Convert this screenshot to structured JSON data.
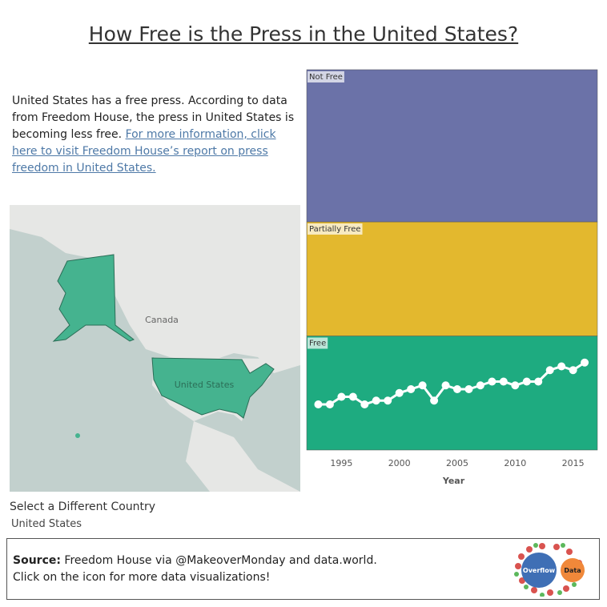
{
  "header": {
    "title": "How Free is the Press in the United States?"
  },
  "description": {
    "text": "United States has a free press. According to data from Freedom House, the press in United States is becoming less free.",
    "link": "For more information, click here to visit Freedom House’s report on press freedom in United States."
  },
  "map": {
    "labels": [
      "Canada",
      "United States"
    ]
  },
  "filter": {
    "label": "Select a Different Country",
    "value": "United States"
  },
  "footer": {
    "source_label": "Source:",
    "source_text": "Freedom House via @MakeoverMonday and data.world.",
    "note": "Click on the icon for more data visualizations!",
    "logo": [
      "Overflow",
      "Data"
    ]
  },
  "chart_data": {
    "type": "line",
    "x_label": "Year",
    "x": [
      1993,
      1994,
      1995,
      1996,
      1997,
      1998,
      1999,
      2000,
      2001,
      2002,
      2003,
      2004,
      2005,
      2006,
      2007,
      2008,
      2009,
      2010,
      2011,
      2012,
      2013,
      2014,
      2015,
      2016
    ],
    "values": [
      12,
      12,
      14,
      14,
      12,
      13,
      13,
      15,
      16,
      17,
      13,
      17,
      16,
      16,
      17,
      18,
      18,
      17,
      18,
      18,
      21,
      22,
      21,
      23
    ],
    "color": "#ffffff",
    "xlim": [
      1992,
      2017.1
    ],
    "xticks": [
      1995,
      2000,
      2005,
      2010,
      2015
    ],
    "ylim": [
      0,
      100
    ],
    "bands": [
      {
        "name": "Free",
        "from": 0,
        "to": 30,
        "color": "#1eab80"
      },
      {
        "name": "Partially Free",
        "from": 30,
        "to": 60,
        "color": "#e3b82e"
      },
      {
        "name": "Not Free",
        "from": 60,
        "to": 100,
        "color": "#6b72a8"
      }
    ]
  }
}
